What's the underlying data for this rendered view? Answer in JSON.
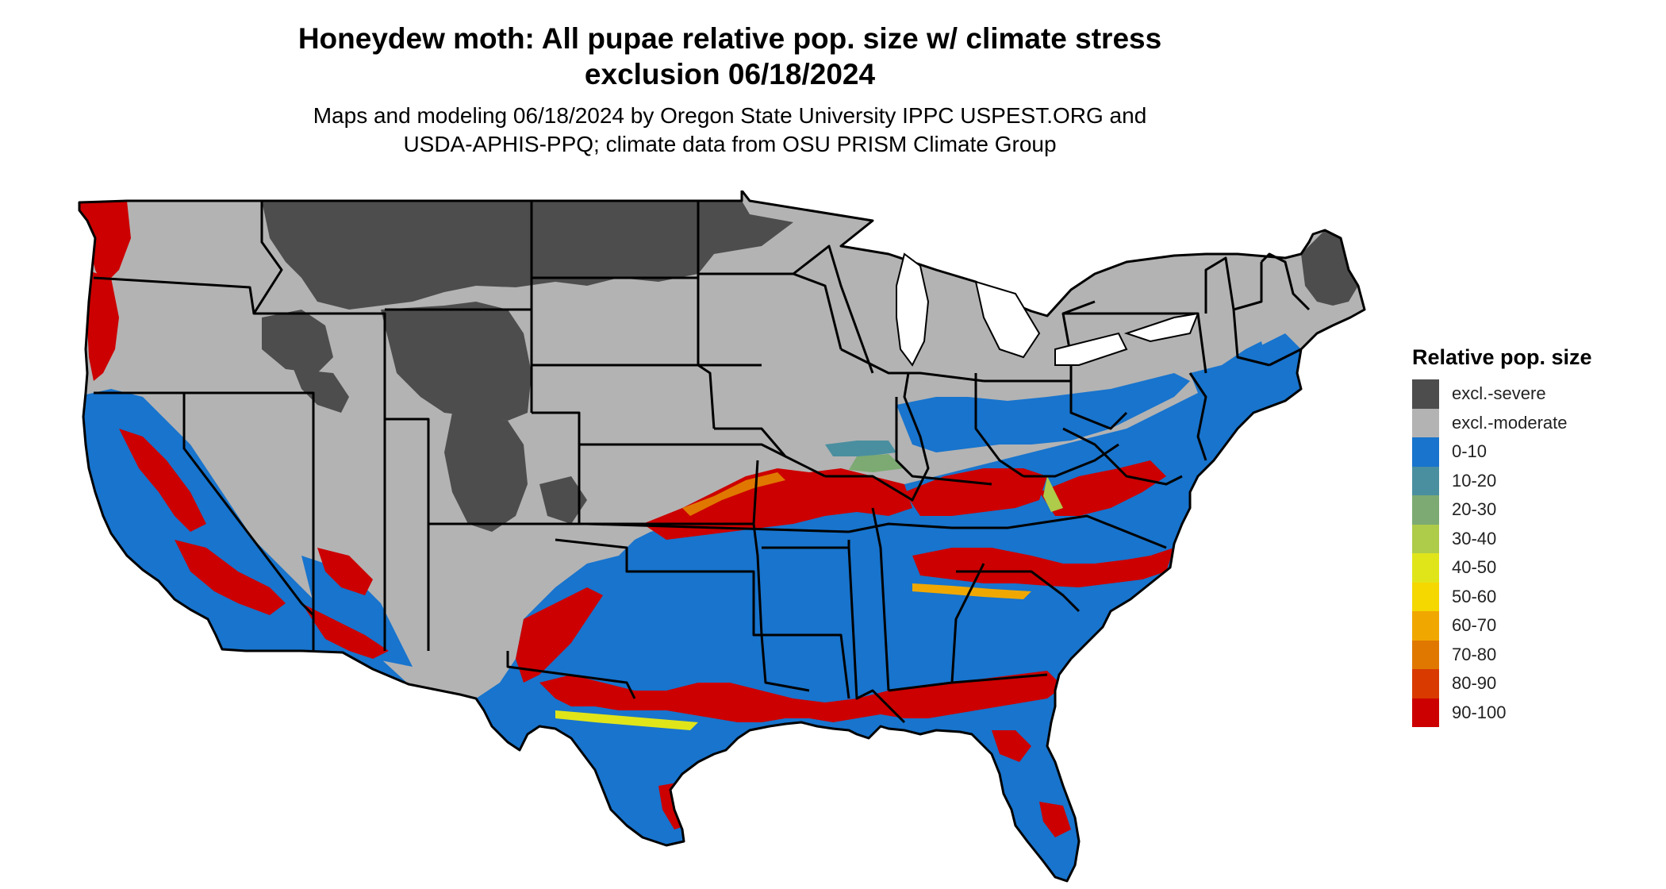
{
  "title_line1": "Honeydew moth: All pupae relative pop. size w/ climate stress",
  "title_line2": "exclusion 06/18/2024",
  "subtitle_line1": "Maps and modeling 06/18/2024 by Oregon State University IPPC USPEST.ORG and",
  "subtitle_line2": "USDA-APHIS-PPQ; climate data from OSU PRISM Climate Group",
  "legend": {
    "title": "Relative pop. size",
    "items": [
      {
        "label": "excl.-severe",
        "color": "#4d4d4d"
      },
      {
        "label": "excl.-moderate",
        "color": "#b3b3b3"
      },
      {
        "label": "0-10",
        "color": "#1874cd"
      },
      {
        "label": "10-20",
        "color": "#4a8fa0"
      },
      {
        "label": "20-30",
        "color": "#7caa72"
      },
      {
        "label": "30-40",
        "color": "#aecb4a"
      },
      {
        "label": "40-50",
        "color": "#e0e51a"
      },
      {
        "label": "50-60",
        "color": "#f5d800"
      },
      {
        "label": "60-70",
        "color": "#f0a800"
      },
      {
        "label": "70-80",
        "color": "#e07800"
      },
      {
        "label": "80-90",
        "color": "#d83a00"
      },
      {
        "label": "90-100",
        "color": "#cc0000"
      }
    ]
  }
}
